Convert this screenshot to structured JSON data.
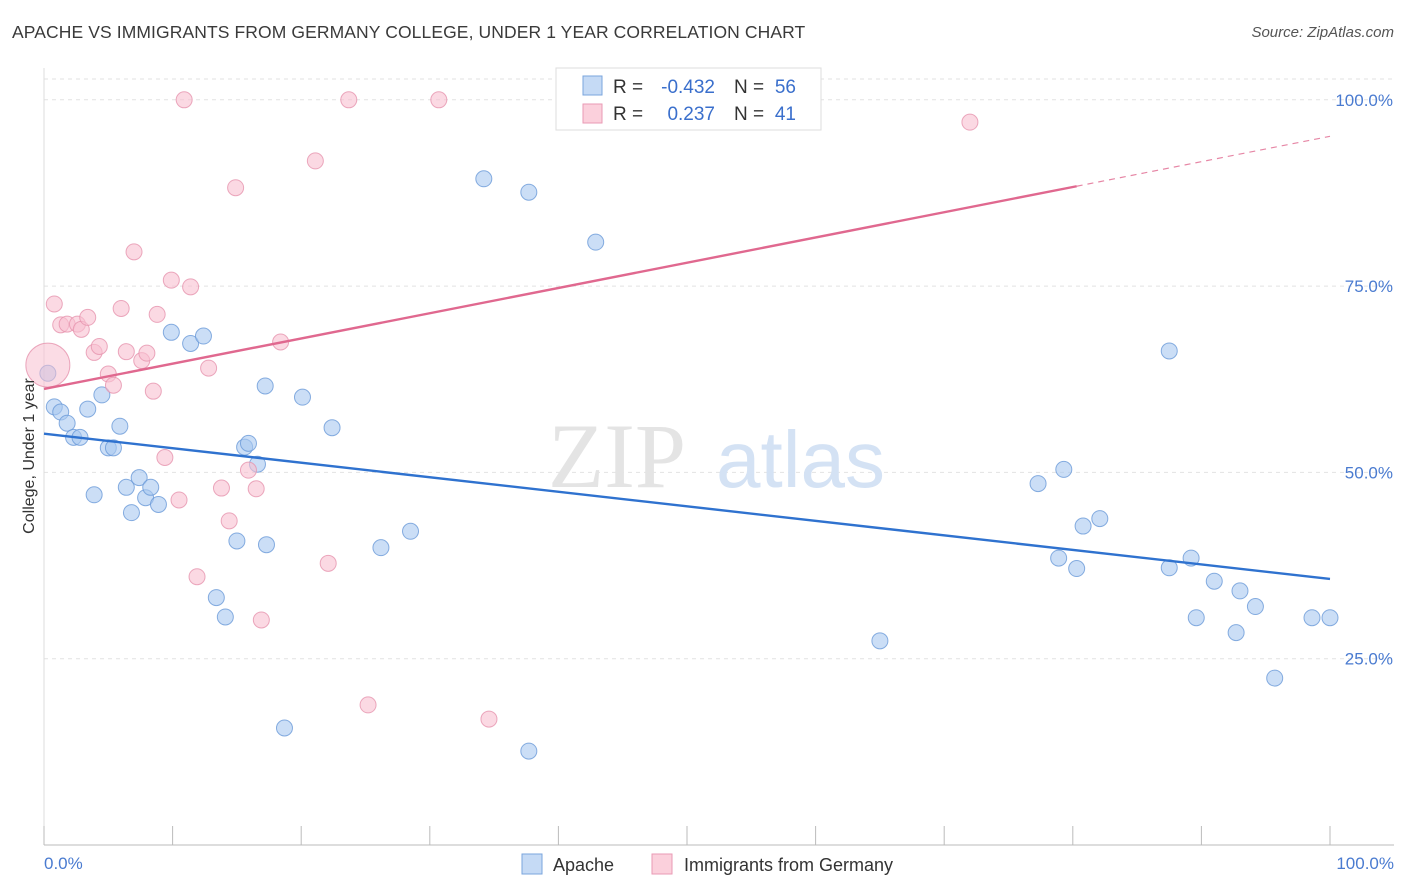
{
  "header": {
    "title": "APACHE VS IMMIGRANTS FROM GERMANY COLLEGE, UNDER 1 YEAR CORRELATION CHART",
    "source": "Source: ZipAtlas.com"
  },
  "watermark": {
    "zip": "ZIP",
    "atlas": "atlas"
  },
  "chart_data": {
    "type": "scatter",
    "ylabel": "College, Under 1 year",
    "xlim": [
      0,
      100
    ],
    "ylim": [
      0,
      104
    ],
    "x_tick_labels": [
      "0.0%",
      "100.0%"
    ],
    "y_ticks": [
      25,
      50,
      75,
      100
    ],
    "y_tick_labels": [
      "25.0%",
      "50.0%",
      "75.0%",
      "100.0%"
    ],
    "grid": true,
    "legend_position": "bottom-center",
    "stats": [
      {
        "r_label": "R =",
        "r_value": "-0.432",
        "n_label": "N =",
        "n_value": "56"
      },
      {
        "r_label": "R =",
        "r_value": "0.237",
        "n_label": "N =",
        "n_value": "41"
      }
    ],
    "series": [
      {
        "name": "Apache",
        "color": "#a9c8f0",
        "stroke": "#6a9ad8",
        "line_color": "#2f72cf",
        "trend": {
          "x": [
            0,
            100
          ],
          "y": [
            55.2,
            35.7
          ]
        },
        "points": [
          {
            "x": 0.3,
            "y": 63.3
          },
          {
            "x": 0.8,
            "y": 58.8
          },
          {
            "x": 1.3,
            "y": 58.1
          },
          {
            "x": 1.8,
            "y": 56.6
          },
          {
            "x": 2.3,
            "y": 54.7
          },
          {
            "x": 2.8,
            "y": 54.7
          },
          {
            "x": 3.4,
            "y": 58.5
          },
          {
            "x": 3.9,
            "y": 47.0
          },
          {
            "x": 4.5,
            "y": 60.4
          },
          {
            "x": 5.0,
            "y": 53.3
          },
          {
            "x": 5.4,
            "y": 53.3
          },
          {
            "x": 5.9,
            "y": 56.2
          },
          {
            "x": 6.4,
            "y": 48.0
          },
          {
            "x": 6.8,
            "y": 44.6
          },
          {
            "x": 7.4,
            "y": 49.3
          },
          {
            "x": 7.9,
            "y": 46.6
          },
          {
            "x": 8.3,
            "y": 48.0
          },
          {
            "x": 8.9,
            "y": 45.7
          },
          {
            "x": 9.9,
            "y": 68.8
          },
          {
            "x": 11.4,
            "y": 67.3
          },
          {
            "x": 12.4,
            "y": 68.3
          },
          {
            "x": 13.4,
            "y": 33.2
          },
          {
            "x": 14.1,
            "y": 30.6
          },
          {
            "x": 15.0,
            "y": 40.8
          },
          {
            "x": 15.6,
            "y": 53.4
          },
          {
            "x": 15.9,
            "y": 53.9
          },
          {
            "x": 16.6,
            "y": 51.1
          },
          {
            "x": 17.2,
            "y": 61.6
          },
          {
            "x": 17.3,
            "y": 40.3
          },
          {
            "x": 18.7,
            "y": 15.7
          },
          {
            "x": 20.1,
            "y": 60.1
          },
          {
            "x": 22.4,
            "y": 56.0
          },
          {
            "x": 26.2,
            "y": 39.9
          },
          {
            "x": 28.5,
            "y": 42.1
          },
          {
            "x": 34.2,
            "y": 89.4
          },
          {
            "x": 37.7,
            "y": 87.6
          },
          {
            "x": 37.7,
            "y": 12.6
          },
          {
            "x": 42.9,
            "y": 80.9
          },
          {
            "x": 65.0,
            "y": 27.4
          },
          {
            "x": 77.3,
            "y": 48.5
          },
          {
            "x": 78.9,
            "y": 38.5
          },
          {
            "x": 79.3,
            "y": 50.4
          },
          {
            "x": 80.3,
            "y": 37.1
          },
          {
            "x": 80.8,
            "y": 42.8
          },
          {
            "x": 82.1,
            "y": 43.8
          },
          {
            "x": 87.5,
            "y": 66.3
          },
          {
            "x": 87.5,
            "y": 37.2
          },
          {
            "x": 89.2,
            "y": 38.5
          },
          {
            "x": 89.6,
            "y": 30.5
          },
          {
            "x": 91.0,
            "y": 35.4
          },
          {
            "x": 92.7,
            "y": 28.5
          },
          {
            "x": 93.0,
            "y": 34.1
          },
          {
            "x": 94.2,
            "y": 32.0
          },
          {
            "x": 95.7,
            "y": 22.4
          },
          {
            "x": 98.6,
            "y": 30.5
          },
          {
            "x": 100.0,
            "y": 30.5
          }
        ]
      },
      {
        "name": "Immigrants from Germany",
        "color": "#f8c0d0",
        "stroke": "#e693ae",
        "line_color": "#e0688f",
        "trend": {
          "x": [
            0,
            80.3
          ],
          "y": [
            61.2,
            88.4
          ]
        },
        "trend_dashed": {
          "x": [
            80.3,
            100
          ],
          "y": [
            88.4,
            95.1
          ]
        },
        "points": [
          {
            "x": 0.3,
            "y": 64.4,
            "big": true
          },
          {
            "x": 0.8,
            "y": 72.6
          },
          {
            "x": 1.3,
            "y": 69.8
          },
          {
            "x": 1.8,
            "y": 69.9
          },
          {
            "x": 2.6,
            "y": 69.9
          },
          {
            "x": 2.9,
            "y": 69.2
          },
          {
            "x": 3.4,
            "y": 70.8
          },
          {
            "x": 3.9,
            "y": 66.1
          },
          {
            "x": 4.3,
            "y": 66.9
          },
          {
            "x": 5.0,
            "y": 63.2
          },
          {
            "x": 5.4,
            "y": 61.7
          },
          {
            "x": 6.0,
            "y": 72.0
          },
          {
            "x": 6.4,
            "y": 66.2
          },
          {
            "x": 7.0,
            "y": 79.6
          },
          {
            "x": 7.6,
            "y": 65.0
          },
          {
            "x": 8.0,
            "y": 66.0
          },
          {
            "x": 8.5,
            "y": 60.9
          },
          {
            "x": 8.8,
            "y": 71.2
          },
          {
            "x": 9.4,
            "y": 52.0
          },
          {
            "x": 9.9,
            "y": 75.8
          },
          {
            "x": 10.5,
            "y": 46.3
          },
          {
            "x": 10.9,
            "y": 100.0
          },
          {
            "x": 11.4,
            "y": 74.9
          },
          {
            "x": 11.9,
            "y": 36.0
          },
          {
            "x": 12.8,
            "y": 64.0
          },
          {
            "x": 13.8,
            "y": 47.9
          },
          {
            "x": 14.4,
            "y": 43.5
          },
          {
            "x": 14.9,
            "y": 88.2
          },
          {
            "x": 15.9,
            "y": 50.3
          },
          {
            "x": 16.5,
            "y": 47.8
          },
          {
            "x": 16.9,
            "y": 30.2
          },
          {
            "x": 18.4,
            "y": 67.5
          },
          {
            "x": 21.1,
            "y": 91.8
          },
          {
            "x": 22.1,
            "y": 37.8
          },
          {
            "x": 23.7,
            "y": 100.0
          },
          {
            "x": 25.2,
            "y": 18.8
          },
          {
            "x": 30.7,
            "y": 100.0
          },
          {
            "x": 34.6,
            "y": 16.9
          },
          {
            "x": 47.7,
            "y": 100.0
          },
          {
            "x": 50.6,
            "y": 100.0
          },
          {
            "x": 72.0,
            "y": 97.0
          }
        ]
      }
    ]
  }
}
